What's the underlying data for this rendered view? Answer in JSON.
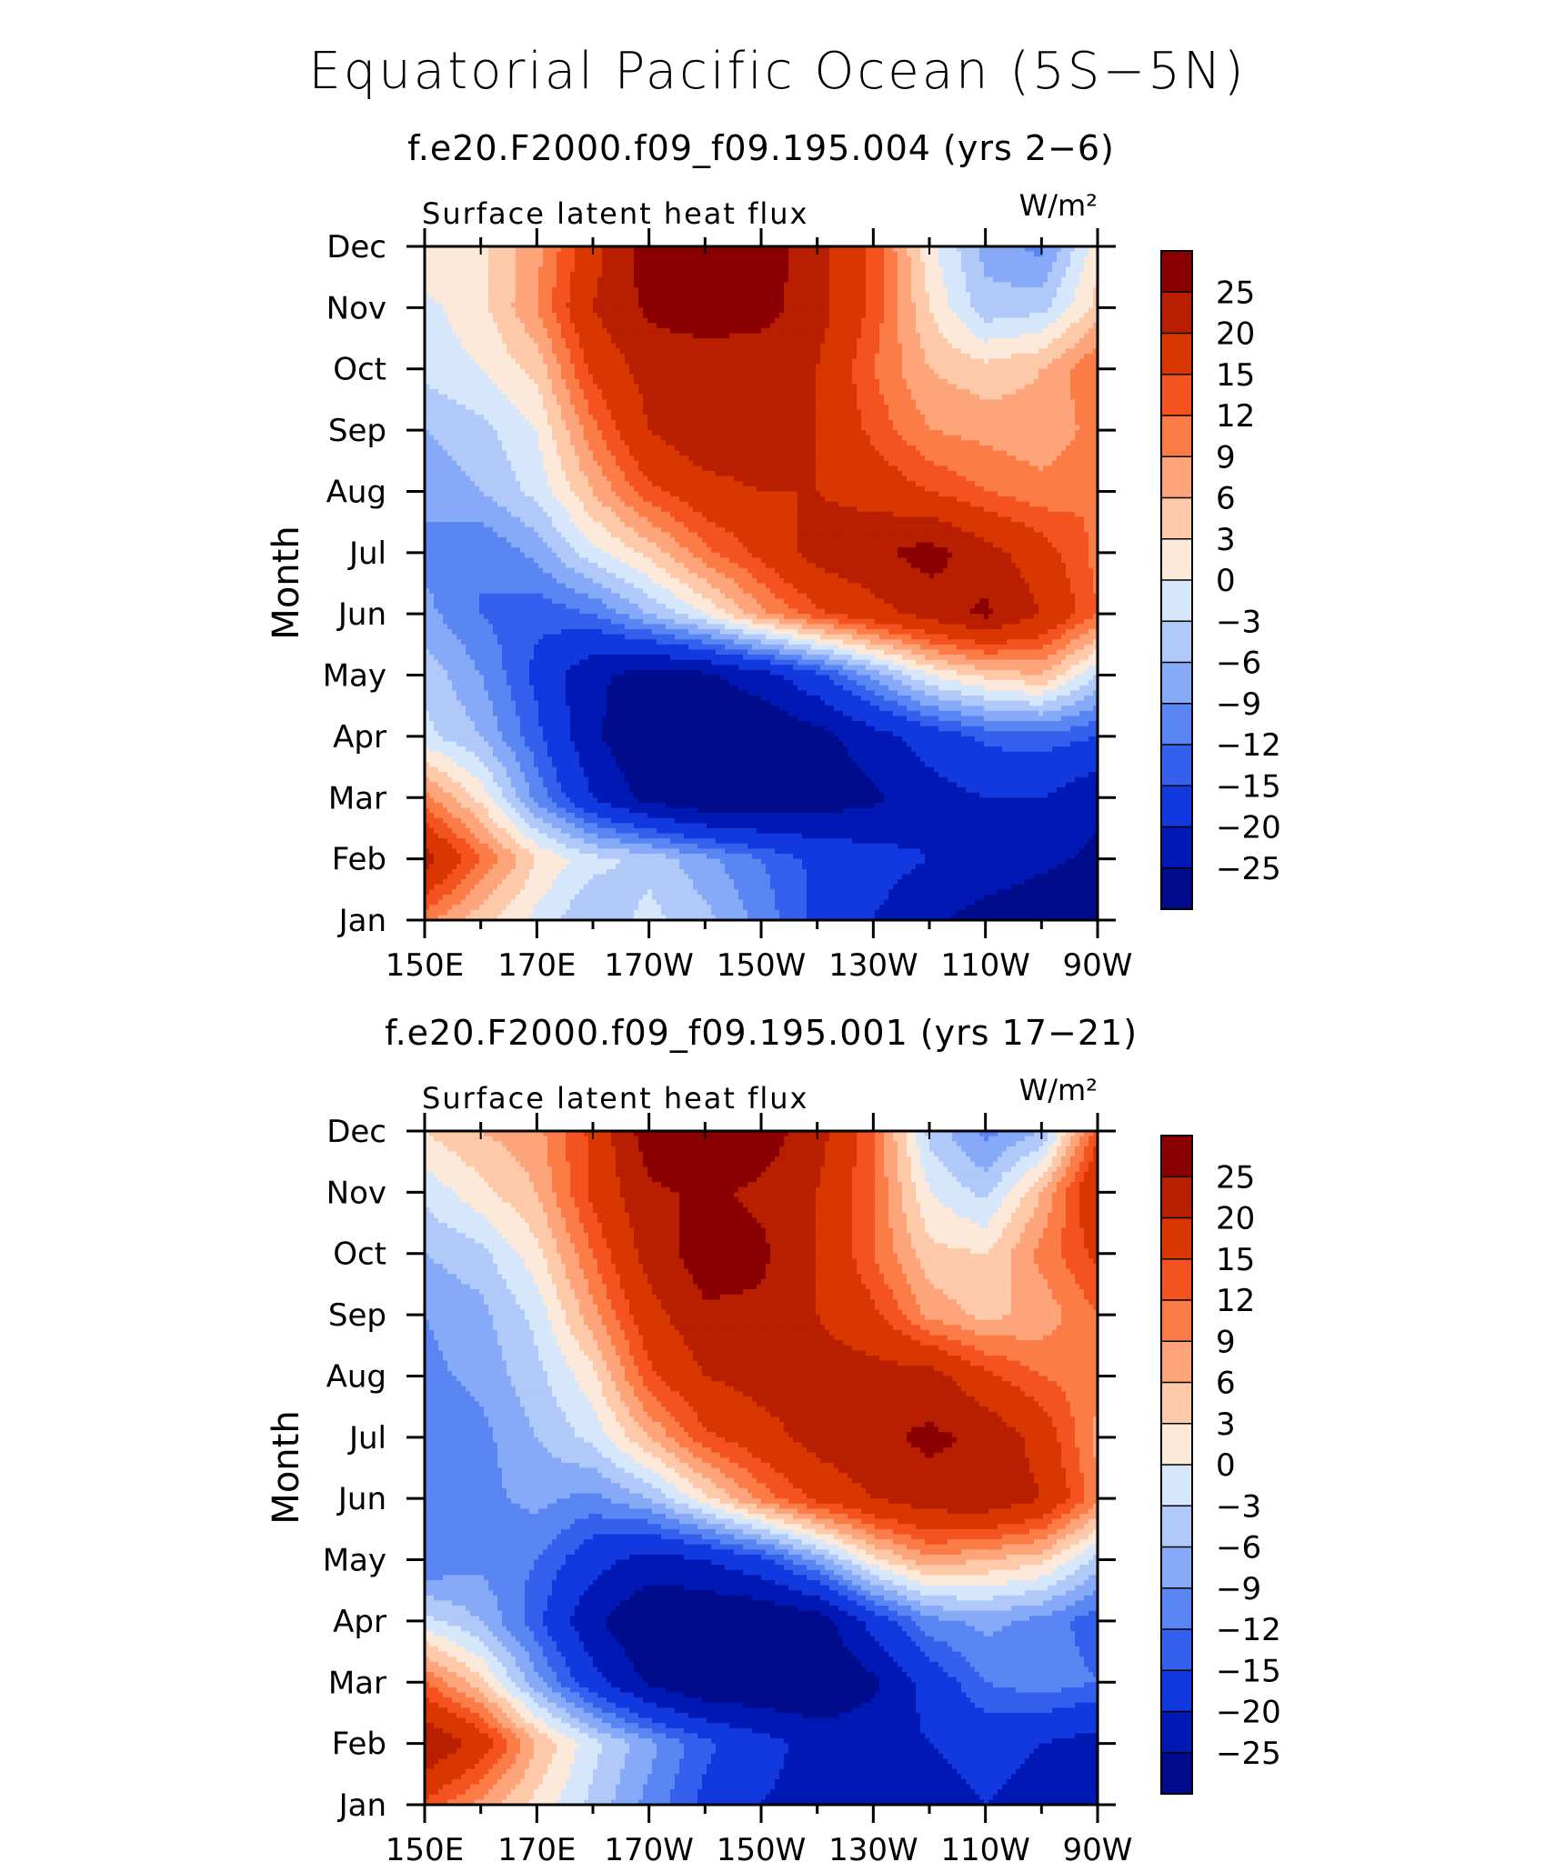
{
  "figure": {
    "title": "Equatorial Pacific Ocean (5S−5N)"
  },
  "colors": {
    "levels": [
      "#8a0000",
      "#b81e00",
      "#d93600",
      "#f4521f",
      "#fb7c46",
      "#fda47b",
      "#fdc9a9",
      "#fde9da",
      "#d6e7fb",
      "#b0c9f9",
      "#86aaf7",
      "#5a86f4",
      "#3460ed",
      "#1238df",
      "#0019b4",
      "#000c8c"
    ]
  },
  "chart_data": [
    {
      "type": "heatmap",
      "panel_title": "f.e20.F2000.f09_f09.195.004 (yrs 2−6)",
      "variable_label": "Surface latent heat flux",
      "units": "W/m²",
      "ylabel": "Month",
      "x_tick_labels": [
        "150E",
        "170E",
        "170W",
        "150W",
        "130W",
        "110W",
        "90W"
      ],
      "y_tick_labels": [
        "Jan",
        "Feb",
        "Mar",
        "Apr",
        "May",
        "Jun",
        "Jul",
        "Aug",
        "Sep",
        "Oct",
        "Nov",
        "Dec"
      ],
      "colorbar_labels": [
        "25",
        "20",
        "15",
        "12",
        "9",
        "6",
        "3",
        "0",
        "−3",
        "−6",
        "−9",
        "−12",
        "−15",
        "−20",
        "−25"
      ],
      "colorbar_levels": [
        25,
        20,
        15,
        12,
        9,
        6,
        3,
        0,
        -3,
        -6,
        -9,
        -12,
        -15,
        -20,
        -25
      ],
      "x": [
        150,
        160,
        170,
        180,
        190,
        200,
        210,
        220,
        230,
        240,
        250,
        260,
        270
      ],
      "y": [
        "Jan",
        "Feb",
        "Mar",
        "Apr",
        "May",
        "Jun",
        "Jul",
        "Aug",
        "Sep",
        "Oct",
        "Nov",
        "Dec"
      ],
      "z": [
        [
          10,
          4,
          -1,
          -6,
          -2,
          -5,
          -10,
          -16,
          -20,
          -24,
          -27,
          -28,
          -29
        ],
        [
          22,
          12,
          3,
          -2,
          -4,
          -8,
          -12,
          -16,
          -18,
          -20,
          -22,
          -24,
          -26
        ],
        [
          10,
          2,
          -10,
          -20,
          -27,
          -30,
          -30,
          -28,
          -26,
          -22,
          -20,
          -20,
          -24
        ],
        [
          -2,
          -6,
          -14,
          -24,
          -30,
          -30,
          -30,
          -27,
          -22,
          -18,
          -14,
          -13,
          -15
        ],
        [
          -4,
          -9,
          -16,
          -24,
          -27,
          -26,
          -22,
          -16,
          -8,
          0,
          4,
          6,
          -3
        ],
        [
          -8,
          -12,
          -14,
          -12,
          -6,
          0,
          8,
          14,
          18,
          22,
          26,
          20,
          12
        ],
        [
          -10,
          -12,
          -8,
          -1,
          4,
          11,
          16,
          22,
          24,
          27,
          22,
          17,
          11
        ],
        [
          -8,
          -6,
          -2,
          6,
          14,
          18,
          20,
          20,
          18,
          15,
          12,
          10,
          12
        ],
        [
          -6,
          -4,
          0,
          11,
          20,
          24,
          24,
          20,
          14,
          9,
          8,
          7,
          10
        ],
        [
          -2,
          0,
          4,
          16,
          22,
          22,
          22,
          20,
          12,
          6,
          4,
          6,
          12
        ],
        [
          -1,
          2,
          9,
          20,
          26,
          28,
          27,
          22,
          14,
          3,
          -5,
          -4,
          4
        ],
        [
          3,
          2,
          8,
          18,
          28,
          30,
          28,
          22,
          14,
          1,
          -7,
          -10,
          2
        ]
      ]
    },
    {
      "type": "heatmap",
      "panel_title": "f.e20.F2000.f09_f09.195.001 (yrs 17−21)",
      "variable_label": "Surface latent heat flux",
      "units": "W/m²",
      "ylabel": "Month",
      "x_tick_labels": [
        "150E",
        "170E",
        "170W",
        "150W",
        "130W",
        "110W",
        "90W"
      ],
      "y_tick_labels": [
        "Jan",
        "Feb",
        "Mar",
        "Apr",
        "May",
        "Jun",
        "Jul",
        "Aug",
        "Sep",
        "Oct",
        "Nov",
        "Dec"
      ],
      "colorbar_labels": [
        "25",
        "20",
        "15",
        "12",
        "9",
        "6",
        "3",
        "0",
        "−3",
        "−6",
        "−9",
        "−12",
        "−15",
        "−20",
        "−25"
      ],
      "colorbar_levels": [
        25,
        20,
        15,
        12,
        9,
        6,
        3,
        0,
        -3,
        -6,
        -9,
        -12,
        -15,
        -20,
        -25
      ],
      "x": [
        150,
        160,
        170,
        180,
        190,
        200,
        210,
        220,
        230,
        240,
        250,
        260,
        270
      ],
      "y": [
        "Jan",
        "Feb",
        "Mar",
        "Apr",
        "May",
        "Jun",
        "Jul",
        "Aug",
        "Sep",
        "Oct",
        "Nov",
        "Dec"
      ],
      "z": [
        [
          14,
          8,
          2,
          -4,
          -10,
          -16,
          -20,
          -22,
          -24,
          -22,
          -20,
          -22,
          -24
        ],
        [
          25,
          18,
          6,
          -2,
          -8,
          -14,
          -18,
          -22,
          -22,
          -20,
          -18,
          -20,
          -22
        ],
        [
          12,
          4,
          -8,
          -18,
          -26,
          -30,
          -30,
          -30,
          -26,
          -18,
          -12,
          -10,
          -12
        ],
        [
          -2,
          -6,
          -14,
          -24,
          -30,
          -30,
          -30,
          -28,
          -18,
          -10,
          -8,
          -10,
          -14
        ],
        [
          -12,
          -10,
          -12,
          -18,
          -22,
          -20,
          -16,
          -8,
          2,
          8,
          6,
          4,
          -4
        ],
        [
          -12,
          -10,
          -8,
          -10,
          -6,
          2,
          10,
          16,
          20,
          23,
          24,
          20,
          10
        ],
        [
          -12,
          -10,
          -6,
          -2,
          6,
          14,
          18,
          22,
          24,
          26,
          24,
          18,
          8
        ],
        [
          -10,
          -8,
          -4,
          2,
          14,
          20,
          22,
          22,
          22,
          22,
          16,
          12,
          10
        ],
        [
          -9,
          -7,
          -2,
          8,
          18,
          24,
          24,
          20,
          16,
          8,
          5,
          7,
          12
        ],
        [
          -6,
          -4,
          2,
          12,
          22,
          28,
          26,
          20,
          12,
          4,
          3,
          10,
          16
        ],
        [
          -2,
          2,
          6,
          16,
          24,
          26,
          24,
          20,
          12,
          0,
          -4,
          6,
          20
        ],
        [
          3,
          6,
          8,
          16,
          28,
          30,
          28,
          22,
          12,
          -4,
          -10,
          -6,
          14
        ]
      ]
    }
  ]
}
